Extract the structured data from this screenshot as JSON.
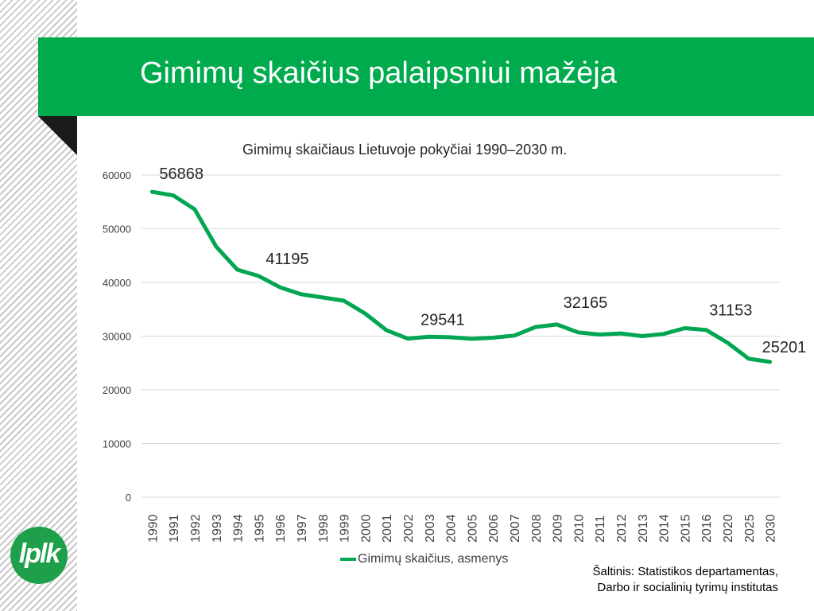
{
  "slide": {
    "title": "Gimimų skaičius palaipsniui mažėja",
    "source_line1": "Šaltinis: Statistikos departamentas,",
    "source_line2": "Darbo ir socialinių tyrimų institutas",
    "logo_text": "lplk"
  },
  "colors": {
    "accent": "#00ab4e",
    "series": "#00a651",
    "grid": "#d9d9d9"
  },
  "chart_data": {
    "type": "line",
    "title": "Gimimų skaičiaus Lietuvoje pokyčiai 1990–2030 m.",
    "xlabel": "",
    "ylabel": "",
    "ylim": [
      0,
      60000
    ],
    "yticks": [
      0,
      10000,
      20000,
      30000,
      40000,
      50000,
      60000
    ],
    "grid": true,
    "legend_position": "bottom",
    "categories": [
      "1990",
      "1991",
      "1992",
      "1993",
      "1994",
      "1995",
      "1996",
      "1997",
      "1998",
      "1999",
      "2000",
      "2001",
      "2002",
      "2003",
      "2004",
      "2005",
      "2006",
      "2007",
      "2008",
      "2009",
      "2010",
      "2011",
      "2012",
      "2013",
      "2014",
      "2015",
      "2016",
      "2020",
      "2025",
      "2030"
    ],
    "series": [
      {
        "name": "Gimimų skaičius, asmenys",
        "values": [
          56868,
          56200,
          53600,
          46700,
          42376,
          41195,
          39100,
          37800,
          37200,
          36600,
          34200,
          31100,
          29541,
          29900,
          29800,
          29500,
          29700,
          30100,
          31700,
          32165,
          30700,
          30300,
          30500,
          30000,
          30400,
          31475,
          31153,
          28800,
          25800,
          25201
        ]
      }
    ],
    "data_labels": [
      {
        "category": "1990",
        "text": "56868"
      },
      {
        "category": "1995",
        "text": "41195"
      },
      {
        "category": "2002",
        "text": "29541"
      },
      {
        "category": "2009",
        "text": "32165"
      },
      {
        "category": "2016",
        "text": "31153"
      },
      {
        "category": "2030",
        "text": "25201"
      }
    ]
  }
}
